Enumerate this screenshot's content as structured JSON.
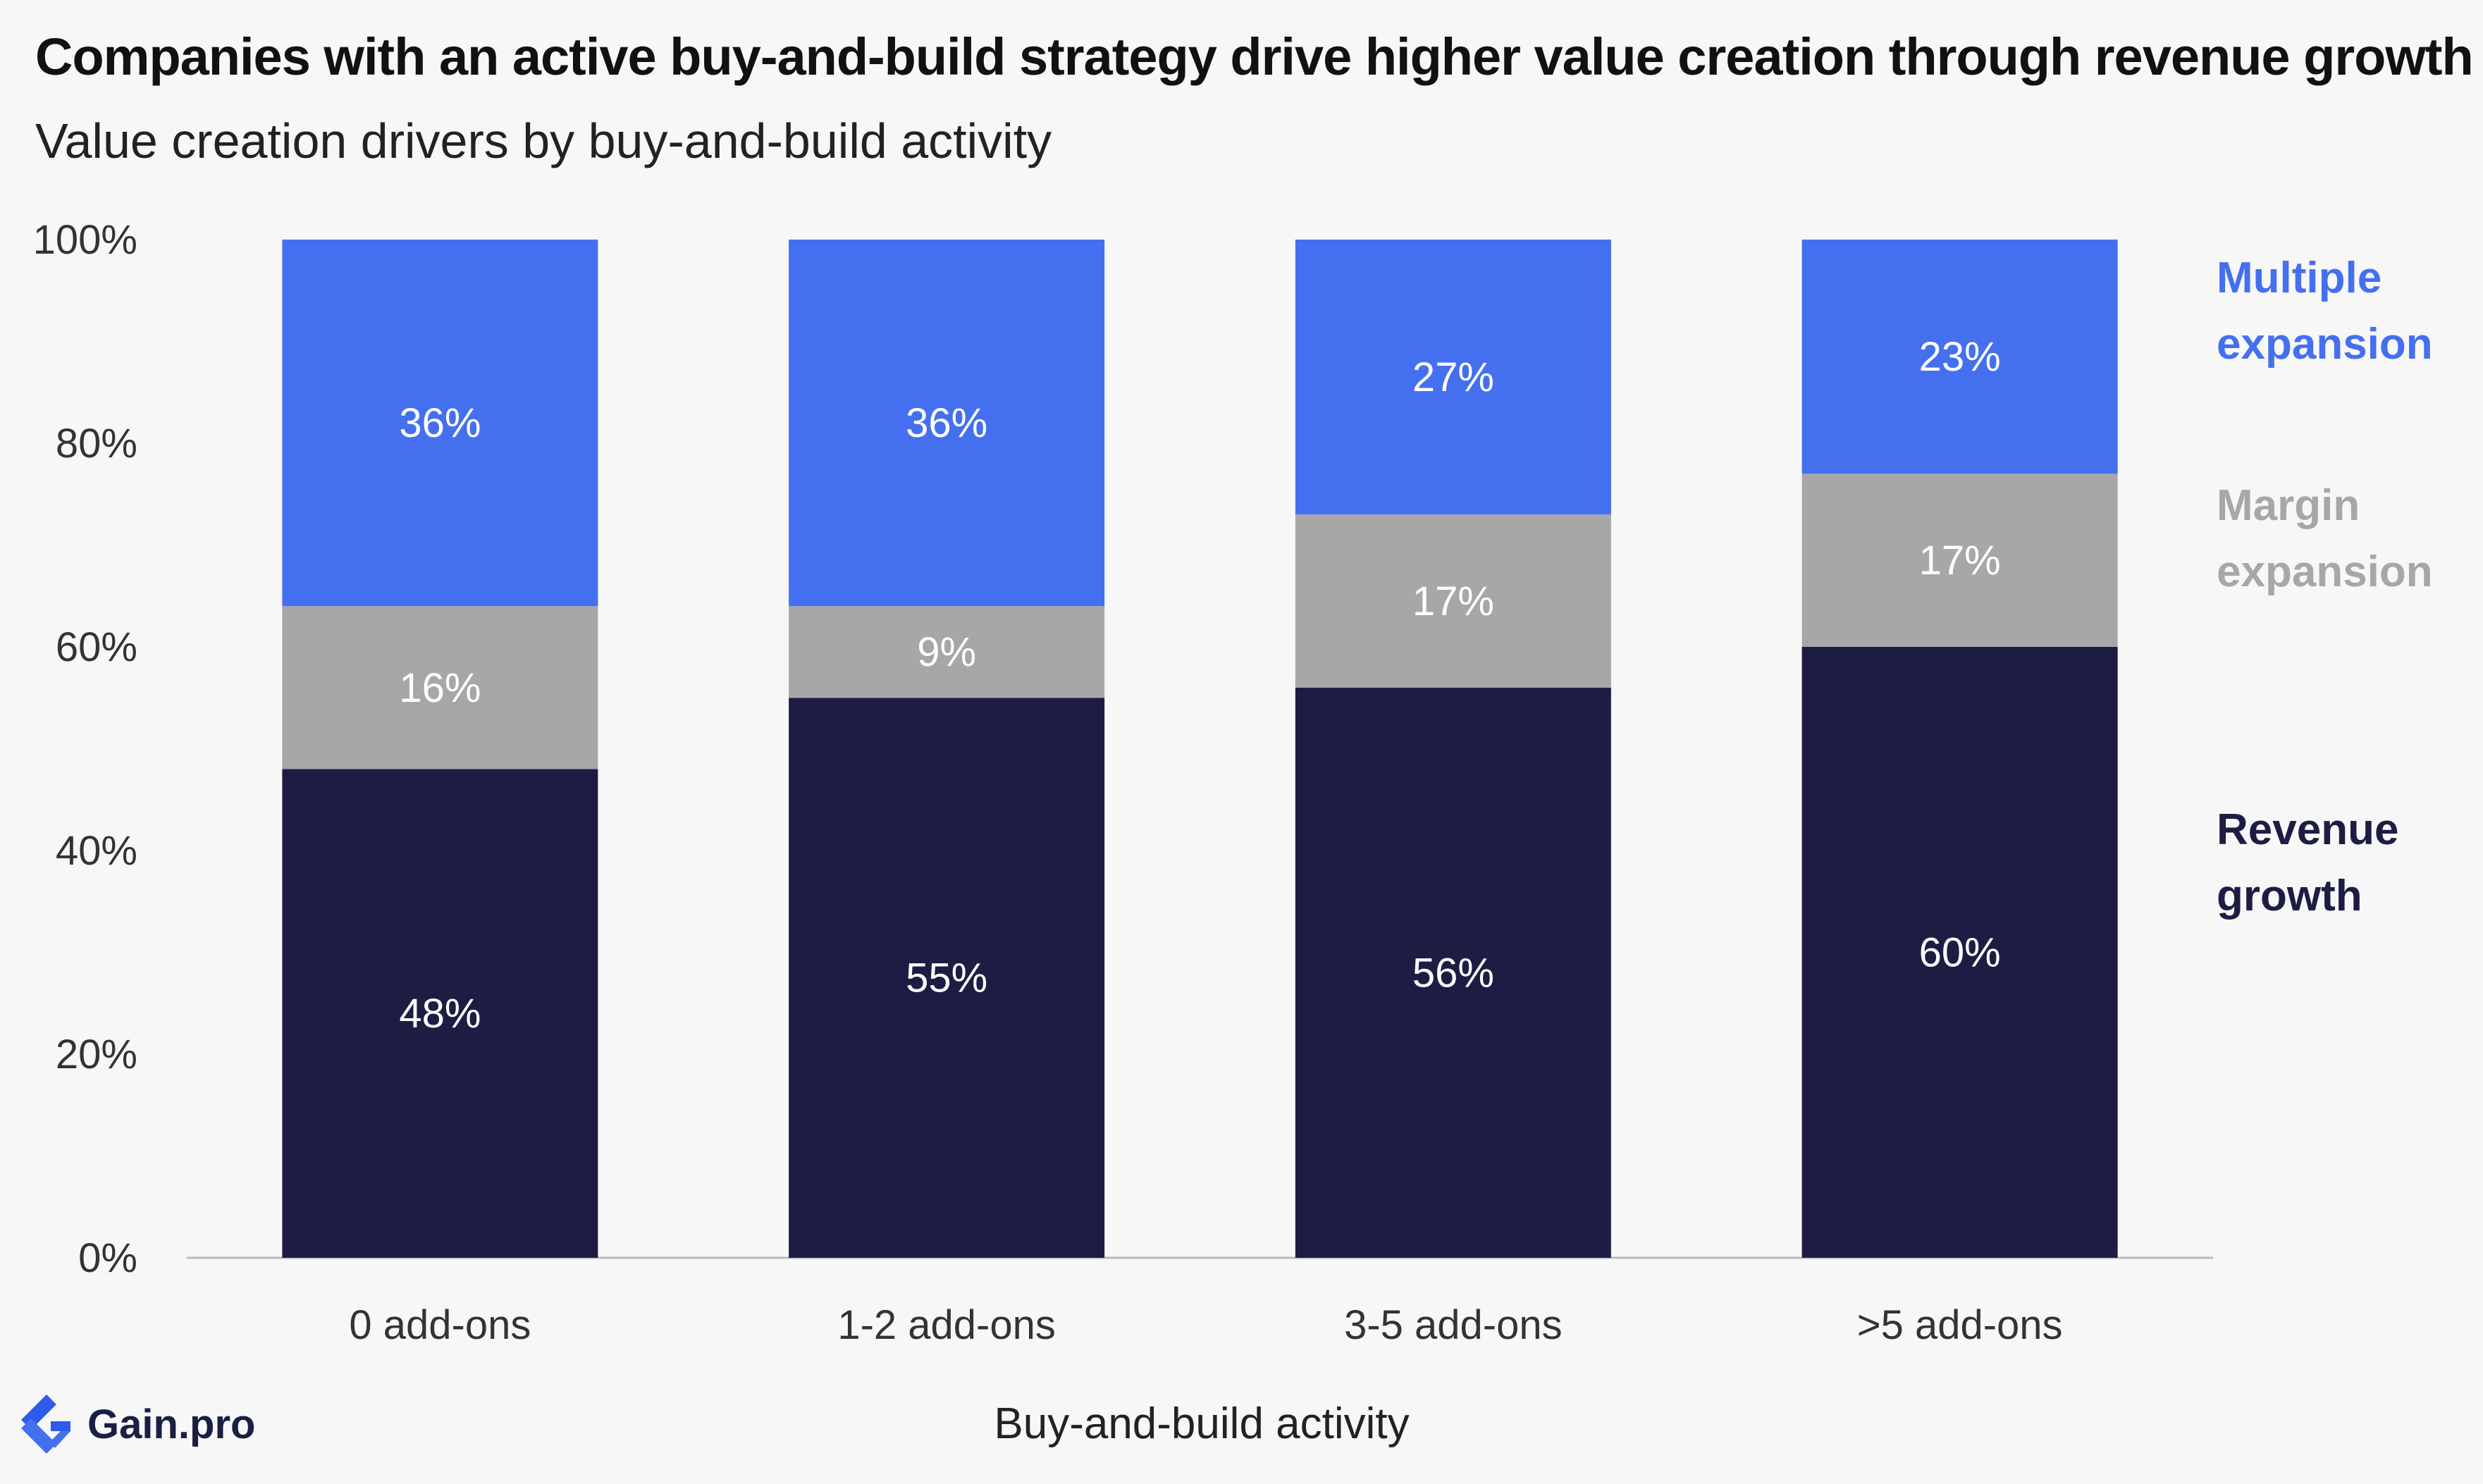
{
  "title": "Companies with an active buy-and-build strategy drive higher value creation through revenue growth",
  "subtitle": "Value creation drivers by buy-and-build activity",
  "brand": {
    "name": "Gain.pro",
    "logo_icon": "gain-pro-logo-icon"
  },
  "colors": {
    "revenue": "#1d1d44",
    "margin": "#a7a7a7",
    "multiple": "#4470f0",
    "axis": "#bbbbbb"
  },
  "chart_data": {
    "type": "bar",
    "stacked": true,
    "categories": [
      "0 add-ons",
      "1-2 add-ons",
      "3-5 add-ons",
      ">5 add-ons"
    ],
    "series": [
      {
        "name": "Revenue growth",
        "values": [
          48,
          55,
          56,
          60
        ],
        "labels": [
          "48%",
          "55%",
          "56%",
          "60%"
        ]
      },
      {
        "name": "Margin expansion",
        "values": [
          16,
          9,
          17,
          17
        ],
        "labels": [
          "16%",
          "9%",
          "17%",
          "17%"
        ]
      },
      {
        "name": "Multiple expansion",
        "values": [
          36,
          36,
          27,
          23
        ],
        "labels": [
          "36%",
          "36%",
          "27%",
          "23%"
        ]
      }
    ],
    "legend": [
      {
        "lines": [
          "Multiple",
          "expansion"
        ],
        "series": "Multiple expansion"
      },
      {
        "lines": [
          "Margin",
          "expansion"
        ],
        "series": "Margin expansion"
      },
      {
        "lines": [
          "Revenue",
          "growth"
        ],
        "series": "Revenue growth"
      }
    ],
    "legend_position": "right",
    "xlabel": "Buy-and-build activity",
    "ylabel": "",
    "ylim": [
      0,
      100
    ],
    "yticks": [
      0,
      20,
      40,
      60,
      80,
      100
    ],
    "ytick_labels": [
      "0%",
      "20%",
      "40%",
      "60%",
      "80%",
      "100%"
    ],
    "grid": false
  }
}
